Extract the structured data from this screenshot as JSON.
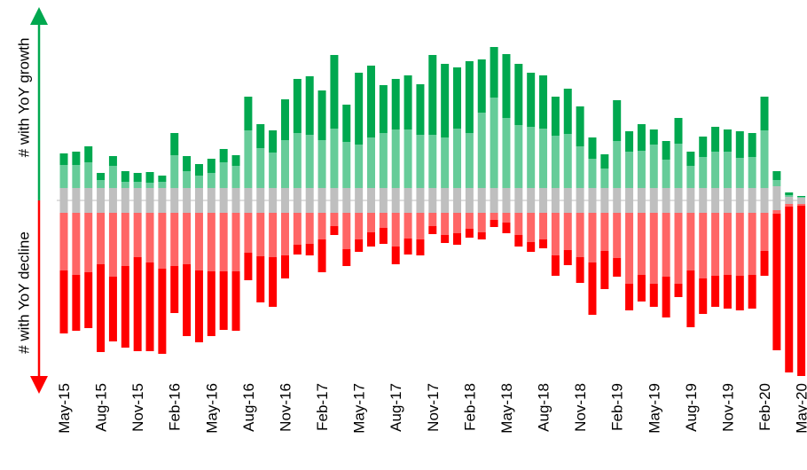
{
  "chart_data": {
    "type": "diverging-stacked-bar",
    "y_label_top": "# with YoY growth",
    "y_label_bottom": "# with YoY decline",
    "categories": [
      "May-15",
      null,
      null,
      "Aug-15",
      null,
      null,
      "Nov-15",
      null,
      null,
      "Feb-16",
      null,
      null,
      "May-16",
      null,
      null,
      "Aug-16",
      null,
      null,
      "Nov-16",
      null,
      null,
      "Feb-17",
      null,
      null,
      "May-17",
      null,
      null,
      "Aug-17",
      null,
      null,
      "Nov-17",
      null,
      null,
      "Feb-18",
      null,
      null,
      "May-18",
      null,
      null,
      "Aug-18",
      null,
      null,
      "Nov-18",
      null,
      null,
      "Feb-19",
      null,
      null,
      "May-19",
      null,
      null,
      "Aug-19",
      null,
      null,
      "Nov-19",
      null,
      null,
      "Feb-20",
      null,
      null,
      "May-20"
    ],
    "series": [
      {
        "color": "#bfbfbf",
        "values": [
          14,
          14,
          14,
          14,
          14,
          14,
          14,
          14,
          14,
          14,
          14,
          14,
          14,
          14,
          14,
          14,
          14,
          14,
          14,
          14,
          14,
          14,
          14,
          14,
          14,
          14,
          14,
          14,
          14,
          14,
          14,
          14,
          14,
          14,
          14,
          14,
          14,
          14,
          14,
          14,
          14,
          14,
          14,
          14,
          14,
          14,
          14,
          14,
          14,
          14,
          14,
          14,
          14,
          14,
          14,
          14,
          14,
          14,
          16,
          4,
          3
        ]
      },
      {
        "color": "#66cc99",
        "values": [
          26,
          26,
          29,
          9,
          25,
          7,
          7,
          6,
          7,
          37,
          19,
          14,
          17,
          29,
          25,
          65,
          45,
          40,
          54,
          62,
          60,
          54,
          67,
          52,
          49,
          57,
          62,
          66,
          66,
          60,
          60,
          57,
          67,
          62,
          85,
          102,
          79,
          71,
          69,
          67,
          59,
          61,
          47,
          33,
          22,
          53,
          41,
          42,
          49,
          32,
          50,
          25,
          35,
          41,
          41,
          34,
          35,
          65,
          7,
          2,
          1
        ]
      },
      {
        "color": "#00a84f",
        "values": [
          13,
          15,
          18,
          8,
          11,
          12,
          10,
          12,
          7,
          25,
          17,
          13,
          16,
          15,
          12,
          38,
          27,
          25,
          46,
          61,
          66,
          56,
          83,
          42,
          81,
          81,
          54,
          57,
          61,
          57,
          90,
          83,
          69,
          81,
          60,
          57,
          72,
          69,
          61,
          60,
          44,
          51,
          45,
          24,
          16,
          46,
          23,
          30,
          17,
          21,
          29,
          16,
          23,
          28,
          25,
          30,
          27,
          38,
          10,
          3,
          1
        ]
      },
      {
        "color": "#bfbfbf",
        "values": [
          -14,
          -14,
          -14,
          -14,
          -14,
          -14,
          -14,
          -14,
          -14,
          -14,
          -14,
          -14,
          -14,
          -14,
          -14,
          -14,
          -14,
          -14,
          -14,
          -14,
          -14,
          -14,
          -14,
          -14,
          -14,
          -14,
          -14,
          -14,
          -14,
          -14,
          -14,
          -14,
          -14,
          -14,
          -14,
          -14,
          -14,
          -14,
          -14,
          -14,
          -14,
          -14,
          -14,
          -14,
          -14,
          -14,
          -14,
          -14,
          -14,
          -14,
          -14,
          -14,
          -14,
          -14,
          -14,
          -14,
          -14,
          -14,
          -11,
          -4,
          -4
        ]
      },
      {
        "color": "#ff6666",
        "values": [
          -65,
          -70,
          -67,
          -58,
          -72,
          -60,
          -50,
          -56,
          -63,
          -60,
          -58,
          -65,
          -66,
          -66,
          -66,
          -45,
          -49,
          -50,
          -48,
          -36,
          -35,
          -30,
          -15,
          -41,
          -30,
          -22,
          -17,
          -38,
          -29,
          -30,
          -15,
          -25,
          -23,
          -18,
          -22,
          -8,
          -11,
          -25,
          -33,
          -30,
          -48,
          -42,
          -50,
          -56,
          -43,
          -51,
          -80,
          -70,
          -80,
          -72,
          -80,
          -65,
          -74,
          -71,
          -70,
          -71,
          -70,
          -43,
          -4,
          -3,
          -2
        ]
      },
      {
        "color": "#ff0000",
        "values": [
          -71,
          -63,
          -63,
          -99,
          -73,
          -92,
          -106,
          -100,
          -96,
          -53,
          -81,
          -81,
          -73,
          -66,
          -67,
          -31,
          -52,
          -56,
          -26,
          -11,
          -13,
          -37,
          -10,
          -19,
          -14,
          -16,
          -18,
          -20,
          -18,
          -18,
          -9,
          -9,
          -13,
          -10,
          -8,
          -8,
          -12,
          -13,
          -11,
          -10,
          -23,
          -17,
          -29,
          -59,
          -43,
          -21,
          -30,
          -30,
          -26,
          -46,
          -15,
          -64,
          -40,
          -35,
          -38,
          -39,
          -38,
          -28,
          -154,
          -187,
          -192
        ]
      }
    ]
  }
}
